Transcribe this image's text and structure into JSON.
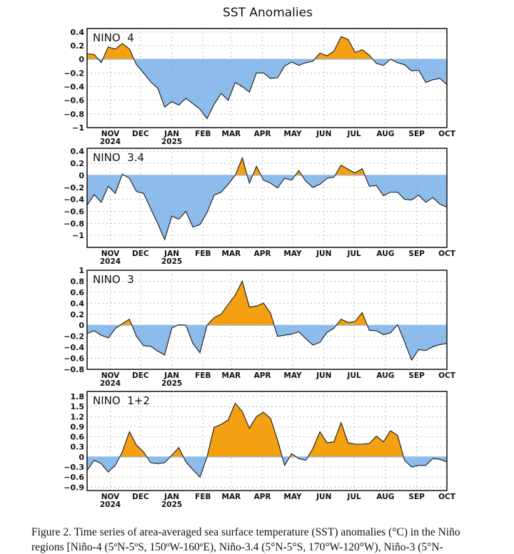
{
  "chart_data": [
    {
      "type": "area",
      "title": "SST Anomalies",
      "panel_label": "NINO  4",
      "start_date": "2024-10-09",
      "interval_days": 7,
      "ylim": [
        -1,
        0.45
      ],
      "yticks": [
        -1,
        -0.8,
        -0.6,
        -0.4,
        -0.2,
        0,
        0.2,
        0.4
      ],
      "values": [
        0.08,
        0.07,
        -0.05,
        0.18,
        0.15,
        0.23,
        0.15,
        -0.08,
        -0.2,
        -0.33,
        -0.42,
        -0.7,
        -0.62,
        -0.67,
        -0.57,
        -0.65,
        -0.73,
        -0.87,
        -0.66,
        -0.5,
        -0.6,
        -0.34,
        -0.4,
        -0.48,
        -0.2,
        -0.2,
        -0.28,
        -0.27,
        -0.1,
        -0.04,
        -0.09,
        -0.05,
        -0.03,
        0.09,
        0.05,
        0.12,
        0.33,
        0.29,
        0.1,
        0.14,
        0.06,
        -0.06,
        -0.09,
        0,
        -0.05,
        -0.08,
        -0.17,
        -0.16,
        -0.34,
        -0.3,
        -0.28,
        -0.37
      ]
    },
    {
      "type": "area",
      "panel_label": "NINO  3.4",
      "start_date": "2024-10-09",
      "interval_days": 7,
      "ylim": [
        -1.2,
        0.45
      ],
      "yticks": [
        -1,
        -0.8,
        -0.6,
        -0.4,
        -0.2,
        0,
        0.2,
        0.4
      ],
      "values": [
        -0.5,
        -0.32,
        -0.45,
        -0.18,
        -0.3,
        0.02,
        -0.05,
        -0.27,
        -0.3,
        -0.55,
        -0.8,
        -1.07,
        -0.68,
        -0.73,
        -0.6,
        -0.86,
        -0.82,
        -0.62,
        -0.33,
        -0.28,
        -0.15,
        0.0,
        0.29,
        -0.13,
        0.15,
        -0.08,
        -0.13,
        -0.21,
        -0.05,
        -0.08,
        0.08,
        -0.1,
        -0.2,
        -0.15,
        -0.05,
        -0.03,
        0.17,
        0.1,
        0.04,
        0.11,
        -0.18,
        -0.17,
        -0.34,
        -0.28,
        -0.28,
        -0.4,
        -0.41,
        -0.33,
        -0.45,
        -0.37,
        -0.48,
        -0.53
      ]
    },
    {
      "type": "area",
      "panel_label": "NINO  3",
      "start_date": "2024-10-09",
      "interval_days": 7,
      "ylim": [
        -0.8,
        1.0
      ],
      "yticks": [
        -0.8,
        -0.6,
        -0.4,
        -0.2,
        0,
        0.2,
        0.4,
        0.6,
        0.8,
        1
      ],
      "values": [
        -0.15,
        -0.1,
        -0.18,
        -0.23,
        -0.06,
        0.03,
        0.11,
        -0.2,
        -0.37,
        -0.38,
        -0.47,
        -0.54,
        -0.05,
        0.01,
        0.0,
        -0.33,
        -0.5,
        0.0,
        0.14,
        0.2,
        0.38,
        0.55,
        0.8,
        0.33,
        0.35,
        0.4,
        0.22,
        -0.2,
        -0.18,
        -0.16,
        -0.12,
        -0.24,
        -0.36,
        -0.31,
        -0.13,
        -0.05,
        0.11,
        0.05,
        0.07,
        0.23,
        -0.09,
        -0.1,
        -0.17,
        -0.14,
        0.01,
        -0.3,
        -0.63,
        -0.44,
        -0.46,
        -0.39,
        -0.35,
        -0.33
      ]
    },
    {
      "type": "area",
      "panel_label": "NINO  1+2",
      "start_date": "2024-10-09",
      "interval_days": 7,
      "ylim": [
        -1.0,
        1.95
      ],
      "yticks": [
        -0.9,
        -0.6,
        -0.3,
        0,
        0.3,
        0.6,
        0.9,
        1.2,
        1.5,
        1.8
      ],
      "values": [
        -0.4,
        -0.1,
        -0.2,
        -0.45,
        -0.25,
        0.15,
        0.75,
        0.35,
        0.15,
        -0.17,
        -0.2,
        -0.17,
        0.05,
        0.28,
        -0.15,
        -0.38,
        -0.6,
        0.0,
        0.88,
        0.97,
        1.1,
        1.6,
        1.35,
        0.85,
        1.2,
        1.33,
        1.15,
        0.5,
        -0.25,
        0.1,
        -0.05,
        -0.1,
        0.25,
        0.75,
        0.42,
        0.45,
        1.02,
        0.42,
        0.38,
        0.38,
        0.4,
        0.62,
        0.45,
        0.78,
        0.65,
        -0.1,
        -0.3,
        -0.25,
        -0.25,
        -0.05,
        -0.07,
        -0.15
      ]
    }
  ],
  "months": [
    {
      "label": "NOV",
      "date": "2024-11-01",
      "year": "2024"
    },
    {
      "label": "DEC",
      "date": "2024-12-01"
    },
    {
      "label": "JAN",
      "date": "2025-01-01",
      "year": "2025"
    },
    {
      "label": "FEB",
      "date": "2025-02-01"
    },
    {
      "label": "MAR",
      "date": "2025-03-01"
    },
    {
      "label": "APR",
      "date": "2025-04-01"
    },
    {
      "label": "MAY",
      "date": "2025-05-01"
    },
    {
      "label": "JUN",
      "date": "2025-06-01"
    },
    {
      "label": "JUL",
      "date": "2025-07-01"
    },
    {
      "label": "AUG",
      "date": "2025-08-01"
    },
    {
      "label": "SEP",
      "date": "2025-09-01"
    },
    {
      "label": "OCT",
      "date": "2025-10-01"
    }
  ],
  "colors": {
    "positive": "#f5a10f",
    "negative": "#8cbcec",
    "line": "#1a1a1a"
  },
  "caption": {
    "line1": "Figure 2. Time series of area-averaged sea surface temperature (SST) anomalies (°C) in the Niño",
    "line2": "regions [Niño-4 (5ºN-5ºS, 150ºW-160ºE), Niño-3.4 (5°N-5°S, 170°W-120°W), Niño-3 (5°N-"
  }
}
